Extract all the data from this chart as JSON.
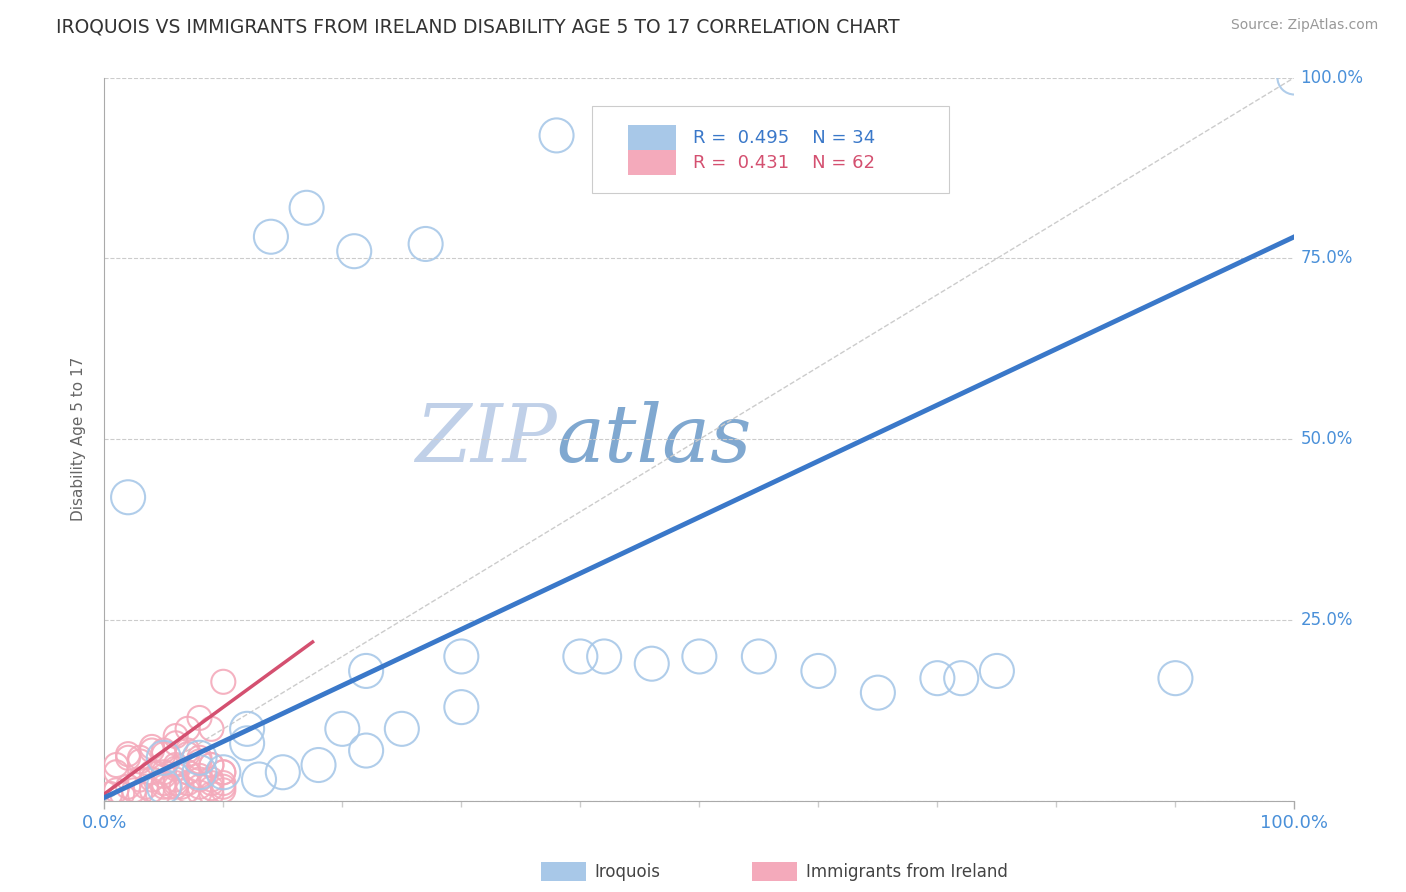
{
  "title": "IROQUOIS VS IMMIGRANTS FROM IRELAND DISABILITY AGE 5 TO 17 CORRELATION CHART",
  "source": "Source: ZipAtlas.com",
  "ylabel": "Disability Age 5 to 17",
  "legend_blue_r": "R = 0.495",
  "legend_blue_n": "N = 34",
  "legend_pink_r": "R = 0.431",
  "legend_pink_n": "N = 62",
  "blue_color": "#a8c8e8",
  "pink_color": "#f4aabb",
  "blue_line_color": "#3a78c9",
  "pink_line_color": "#d45070",
  "axis_label_color": "#4a90d9",
  "title_color": "#333333",
  "watermark_color_zip": "#c0d0e8",
  "watermark_color_atlas": "#80a8d0",
  "background_color": "#ffffff",
  "blue_scatter_x": [
    0.38,
    0.02,
    0.14,
    0.17,
    0.21,
    0.27,
    0.08,
    0.1,
    0.13,
    0.22,
    0.3,
    0.4,
    0.5,
    0.55,
    0.6,
    0.65,
    0.7,
    0.72,
    0.75,
    0.3,
    0.05,
    0.08,
    0.12,
    0.18,
    0.22,
    0.42,
    0.46,
    0.9,
    1.0,
    0.15,
    0.12,
    0.2,
    0.25,
    0.05
  ],
  "blue_scatter_y": [
    0.92,
    0.42,
    0.78,
    0.82,
    0.76,
    0.77,
    0.06,
    0.04,
    0.03,
    0.18,
    0.2,
    0.2,
    0.2,
    0.2,
    0.18,
    0.15,
    0.17,
    0.17,
    0.18,
    0.13,
    0.06,
    0.04,
    0.08,
    0.05,
    0.07,
    0.2,
    0.19,
    0.17,
    1.0,
    0.04,
    0.1,
    0.1,
    0.1,
    0.02
  ],
  "pink_scatter_x": [
    0.005,
    0.01,
    0.015,
    0.02,
    0.025,
    0.03,
    0.035,
    0.04,
    0.045,
    0.05,
    0.055,
    0.06,
    0.065,
    0.01,
    0.02,
    0.03,
    0.04,
    0.05,
    0.06,
    0.07,
    0.08,
    0.09,
    0.1,
    0.07,
    0.08,
    0.09,
    0.1,
    0.04,
    0.05,
    0.06,
    0.07,
    0.08,
    0.09,
    0.1,
    0.01,
    0.02,
    0.03,
    0.04,
    0.05,
    0.06,
    0.07,
    0.08,
    0.09,
    0.1,
    0.03,
    0.04,
    0.05,
    0.06,
    0.07,
    0.08,
    0.09,
    0.1,
    0.05,
    0.06,
    0.07,
    0.08,
    0.09,
    0.1,
    0.06,
    0.07,
    0.08,
    0.09
  ],
  "pink_scatter_y": [
    0.01,
    0.015,
    0.01,
    0.02,
    0.015,
    0.01,
    0.02,
    0.015,
    0.01,
    0.02,
    0.02,
    0.025,
    0.02,
    0.05,
    0.065,
    0.06,
    0.075,
    0.07,
    0.09,
    0.1,
    0.115,
    0.1,
    0.165,
    0.065,
    0.055,
    0.05,
    0.04,
    0.03,
    0.04,
    0.05,
    0.04,
    0.03,
    0.025,
    0.02,
    0.04,
    0.06,
    0.055,
    0.07,
    0.065,
    0.08,
    0.07,
    0.06,
    0.05,
    0.04,
    0.03,
    0.04,
    0.035,
    0.045,
    0.04,
    0.035,
    0.03,
    0.025,
    0.025,
    0.03,
    0.025,
    0.02,
    0.018,
    0.015,
    0.02,
    0.015,
    0.012,
    0.01
  ],
  "xlim": [
    0.0,
    1.0
  ],
  "ylim": [
    0.0,
    1.0
  ],
  "ytick_values": [
    0.0,
    0.25,
    0.5,
    0.75,
    1.0
  ],
  "ytick_labels": [
    "0.0%",
    "25.0%",
    "50.0%",
    "75.0%",
    "100.0%"
  ],
  "blue_line_x": [
    0.0,
    1.0
  ],
  "blue_line_y": [
    0.005,
    0.78
  ],
  "pink_line_x": [
    0.0,
    0.175
  ],
  "pink_line_y": [
    0.01,
    0.22
  ],
  "ref_line_x": [
    0.0,
    1.0
  ],
  "ref_line_y": [
    0.0,
    1.0
  ]
}
